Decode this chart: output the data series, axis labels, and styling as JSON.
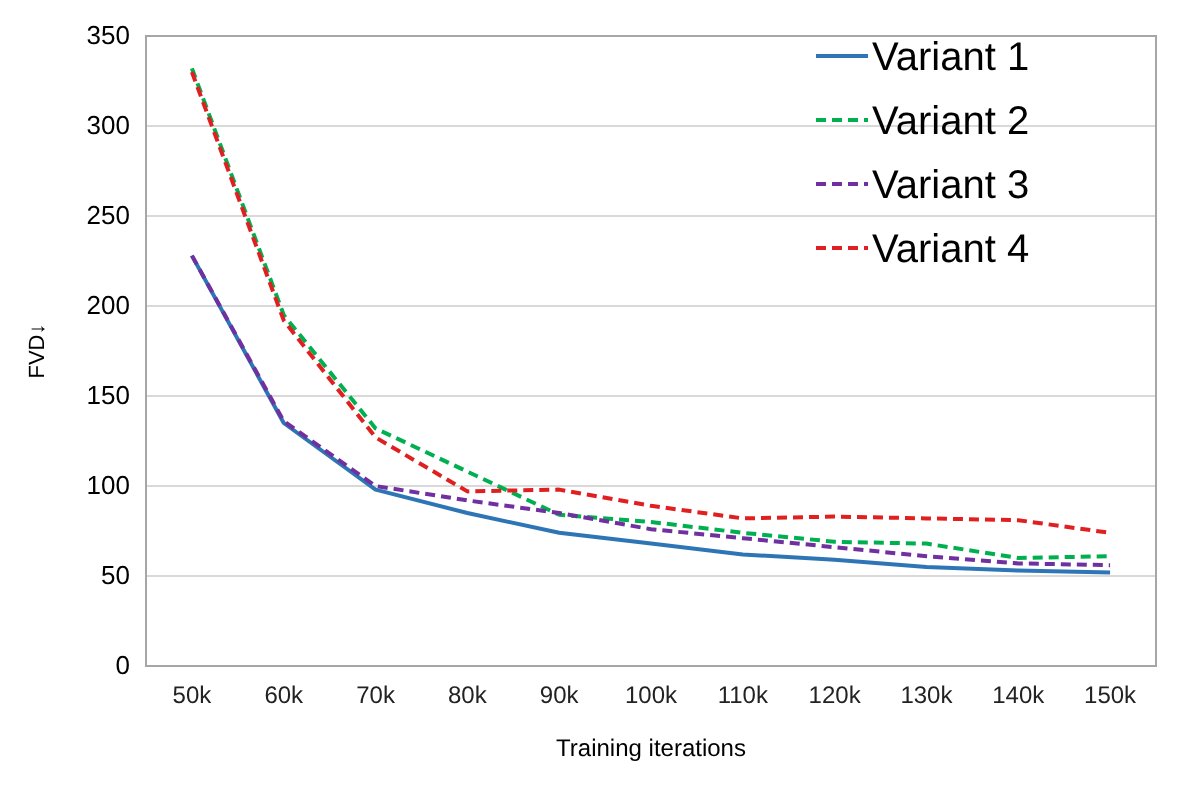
{
  "chart_data": {
    "type": "line",
    "xlabel": "Training iterations",
    "ylabel": "FVD↓",
    "categories": [
      "50k",
      "60k",
      "70k",
      "80k",
      "90k",
      "100k",
      "110k",
      "120k",
      "130k",
      "140k",
      "150k"
    ],
    "ylim": [
      0,
      350
    ],
    "yticks": [
      0,
      50,
      100,
      150,
      200,
      250,
      300,
      350
    ],
    "grid": "y",
    "legend": "top right",
    "marker": "none",
    "series": [
      {
        "name": "Variant 1",
        "color": "#2e75b6",
        "line_style": "solid",
        "values": [
          228,
          135,
          98,
          85,
          74,
          68,
          62,
          59,
          55,
          53,
          52
        ]
      },
      {
        "name": "Variant 2",
        "color": "#00b050",
        "line_style": "dashed",
        "values": [
          332,
          195,
          132,
          108,
          84,
          80,
          74,
          69,
          68,
          60,
          61
        ]
      },
      {
        "name": "Variant 3",
        "color": "#7030a0",
        "line_style": "dashed",
        "values": [
          228,
          136,
          100,
          92,
          85,
          76,
          71,
          66,
          61,
          57,
          56
        ]
      },
      {
        "name": "Variant 4",
        "color": "#e02020",
        "line_style": "dashed",
        "values": [
          330,
          192,
          127,
          97,
          98,
          89,
          82,
          83,
          82,
          81,
          74
        ]
      }
    ]
  }
}
